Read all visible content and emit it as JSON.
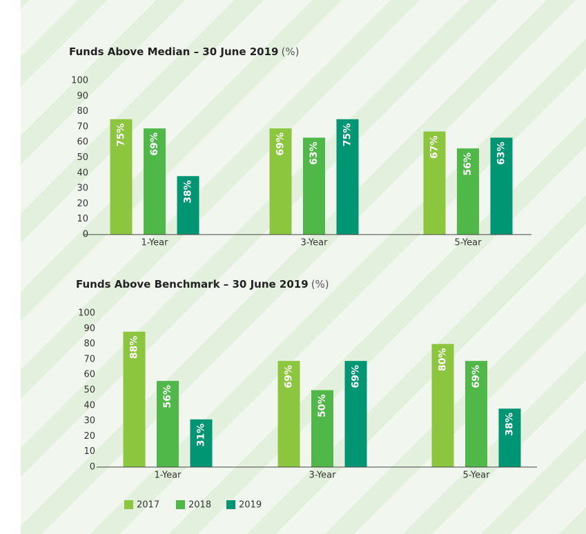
{
  "legend": [
    {
      "name": "2017",
      "color": "#8cc63f"
    },
    {
      "name": "2018",
      "color": "#4fb848"
    },
    {
      "name": "2019",
      "color": "#009673"
    }
  ],
  "chart_data": [
    {
      "type": "bar",
      "title": "Funds Above Median – 30 June 2019",
      "unit_label": "(%)",
      "categories": [
        "1-Year",
        "3-Year",
        "5-Year"
      ],
      "series": [
        {
          "values": [
            75,
            69,
            67
          ],
          "value_labels": [
            "75%",
            "69%",
            "67%"
          ]
        },
        {
          "values": [
            69,
            63,
            56
          ],
          "value_labels": [
            "69%",
            "63%",
            "56%"
          ]
        },
        {
          "values": [
            38,
            75,
            63
          ],
          "value_labels": [
            "38%",
            "75%",
            "63%"
          ]
        }
      ],
      "ylim": [
        0,
        100
      ],
      "yticks": [
        0,
        10,
        20,
        30,
        40,
        50,
        60,
        70,
        80,
        90,
        100
      ]
    },
    {
      "type": "bar",
      "title": "Funds Above Benchmark – 30 June 2019",
      "unit_label": "(%)",
      "categories": [
        "1-Year",
        "3-Year",
        "5-Year"
      ],
      "series": [
        {
          "values": [
            88,
            69,
            80
          ],
          "value_labels": [
            "88%",
            "69%",
            "80%"
          ]
        },
        {
          "values": [
            56,
            50,
            69
          ],
          "value_labels": [
            "56%",
            "50%",
            "69%"
          ]
        },
        {
          "values": [
            31,
            69,
            38
          ],
          "value_labels": [
            "31%",
            "69%",
            "38%"
          ]
        }
      ],
      "ylim": [
        0,
        100
      ],
      "yticks": [
        0,
        10,
        20,
        30,
        40,
        50,
        60,
        70,
        80,
        90,
        100
      ]
    }
  ]
}
